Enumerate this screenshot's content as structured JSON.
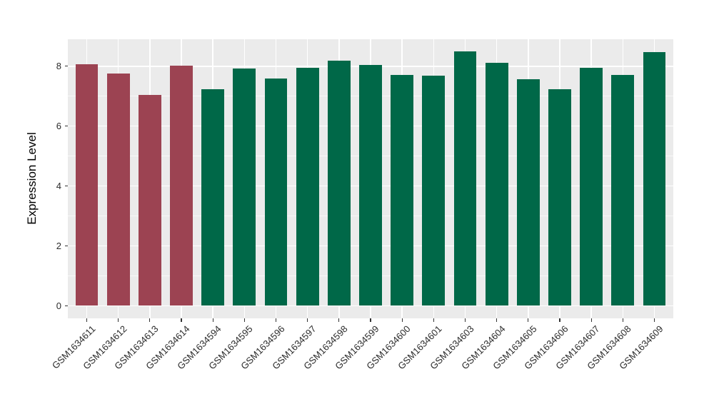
{
  "chart_data": {
    "type": "bar",
    "title": "",
    "xlabel": "",
    "ylabel": "Expression Level",
    "categories": [
      "GSM1634611",
      "GSM1634612",
      "GSM1634613",
      "GSM1634614",
      "GSM1634594",
      "GSM1634595",
      "GSM1634596",
      "GSM1634597",
      "GSM1634598",
      "GSM1634599",
      "GSM1634600",
      "GSM1634601",
      "GSM1634603",
      "GSM1634604",
      "GSM1634605",
      "GSM1634606",
      "GSM1634607",
      "GSM1634608",
      "GSM1634609"
    ],
    "values": [
      8.06,
      7.75,
      7.03,
      8.02,
      7.24,
      7.92,
      7.6,
      7.95,
      8.19,
      8.04,
      7.7,
      7.68,
      8.49,
      8.11,
      7.57,
      7.23,
      7.95,
      7.72,
      8.48
    ],
    "bar_groups": [
      "group1",
      "group1",
      "group1",
      "group1",
      "group2",
      "group2",
      "group2",
      "group2",
      "group2",
      "group2",
      "group2",
      "group2",
      "group2",
      "group2",
      "group2",
      "group2",
      "group2",
      "group2",
      "group2"
    ],
    "group_colors": {
      "group1": "#9C4352",
      "group2": "#006848"
    },
    "ylim": [
      0,
      8.9
    ],
    "yticks_major": [
      0,
      2,
      4,
      6,
      8
    ],
    "yticks_minor": [
      1,
      3,
      5,
      7
    ],
    "grid": true,
    "legend_position": "none",
    "colors": {
      "panel_background": "#EBEBEB",
      "gridline": "#FFFFFF",
      "figure_background": "#FFFFFF",
      "axis_text": "#2B2B2B"
    }
  }
}
